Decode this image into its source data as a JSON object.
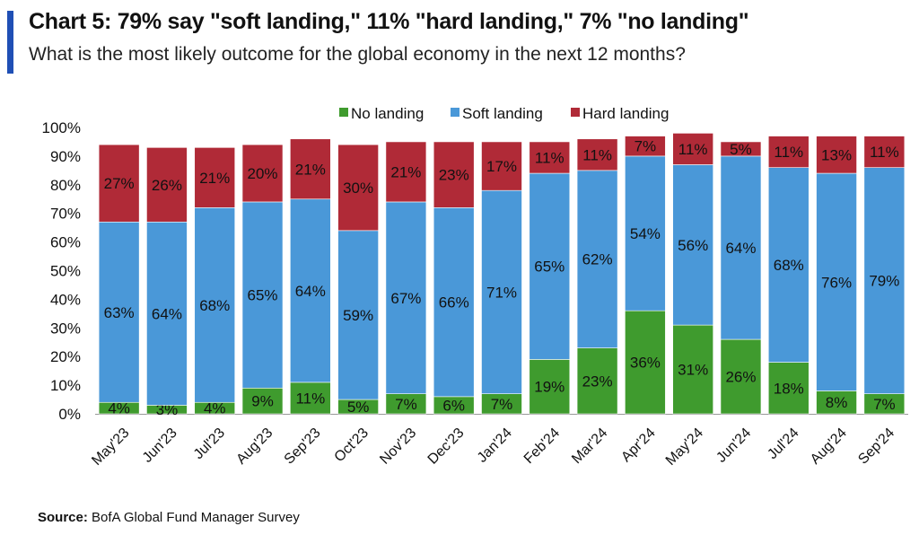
{
  "title": "Chart 5: 79% say \"soft landing,\" 11% \"hard landing,\" 7% \"no landing\"",
  "subtitle": "What is the most likely outcome for the global economy in the next 12 months?",
  "source_label": "Source:",
  "source_text": "BofA Global Fund Manager Survey",
  "colors": {
    "accent": "#1f4fb5",
    "no_landing": "#3f9b2e",
    "soft_landing": "#4a98d8",
    "hard_landing": "#b02a37"
  },
  "chart_data": {
    "type": "bar",
    "stacked": true,
    "categories": [
      "May'23",
      "Jun'23",
      "Jul'23",
      "Aug'23",
      "Sep'23",
      "Oct'23",
      "Nov'23",
      "Dec'23",
      "Jan'24",
      "Feb'24",
      "Mar'24",
      "Apr'24",
      "May'24",
      "Jun'24",
      "Jul'24",
      "Aug'24",
      "Sep'24"
    ],
    "series": [
      {
        "name": "No landing",
        "color": "#3f9b2e",
        "values": [
          4,
          3,
          4,
          9,
          11,
          5,
          7,
          6,
          7,
          19,
          23,
          36,
          31,
          26,
          18,
          8,
          7
        ]
      },
      {
        "name": "Soft landing",
        "color": "#4a98d8",
        "values": [
          63,
          64,
          68,
          65,
          64,
          59,
          67,
          66,
          71,
          65,
          62,
          54,
          56,
          64,
          68,
          76,
          79
        ]
      },
      {
        "name": "Hard landing",
        "color": "#b02a37",
        "values": [
          27,
          26,
          21,
          20,
          21,
          30,
          21,
          23,
          17,
          11,
          11,
          7,
          11,
          5,
          11,
          13,
          11
        ]
      }
    ],
    "ylim": [
      0,
      100
    ],
    "yticks": [
      "0%",
      "10%",
      "20%",
      "30%",
      "40%",
      "50%",
      "60%",
      "70%",
      "80%",
      "90%",
      "100%"
    ],
    "legend_position": "top-center",
    "grid": false
  }
}
